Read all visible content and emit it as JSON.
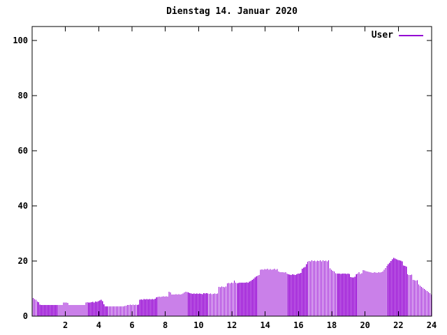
{
  "chart": {
    "title": "Dienstag 14. Januar 2020",
    "legend_label": "User"
  },
  "chart_data": {
    "type": "bar",
    "subtype": "impulses",
    "title": "Dienstag 14. Januar 2020",
    "xlabel": "",
    "ylabel": "",
    "x_unit": "hour of day",
    "sample_interval_minutes": 5,
    "x_ticks": [
      2,
      4,
      6,
      8,
      10,
      12,
      14,
      16,
      18,
      20,
      22,
      24
    ],
    "y_ticks": [
      0,
      20,
      40,
      60,
      80,
      100
    ],
    "xlim": [
      0,
      24
    ],
    "ylim": [
      0,
      105
    ],
    "grid": false,
    "legend_position": "top-right-inside",
    "bar_color": "#9400d3",
    "axis_color": "#000000",
    "background_color": "#ffffff",
    "series": [
      {
        "name": "User",
        "color": "#9400d3",
        "values": [
          6.6,
          6.2,
          5.9,
          5.3,
          5.1,
          4.2,
          4,
          4.1,
          4,
          4.1,
          4,
          4.1,
          4,
          4.1,
          4,
          4.1,
          4,
          4.1,
          4,
          4.1,
          4,
          4.1,
          4.9,
          5,
          4.9,
          4.8,
          4.1,
          4,
          4.1,
          4,
          4.1,
          4,
          4.1,
          4,
          4.1,
          4,
          4.1,
          4,
          4.9,
          5.1,
          5,
          4.9,
          5.1,
          5.2,
          5,
          5.3,
          5.2,
          5.5,
          5.7,
          5.9,
          5.4,
          4.3,
          3.6,
          3.5,
          3.6,
          3.5,
          3.6,
          3.5,
          3.6,
          3.5,
          3.5,
          3.6,
          3.5,
          3.6,
          3.5,
          3.6,
          3.7,
          3.8,
          4,
          4.1,
          4.2,
          4.1,
          4.2,
          4.1,
          4.2,
          4.1,
          4.2,
          6,
          6.1,
          6,
          6.2,
          6.1,
          6.2,
          6.1,
          6.2,
          6.1,
          6.2,
          6.1,
          6.3,
          6.9,
          7,
          7.1,
          7,
          7.1,
          7.2,
          7.1,
          7.2,
          7.1,
          8.9,
          8.6,
          7.9,
          7.8,
          7.9,
          8,
          7.9,
          8,
          7.9,
          8,
          8.2,
          8.6,
          8.8,
          8.7,
          8.6,
          8.4,
          8.2,
          8.1,
          8.2,
          8.1,
          8.2,
          8.1,
          8.2,
          8.1,
          8,
          8.3,
          8.2,
          8.4,
          8.2,
          8.1,
          8.2,
          8,
          8.1,
          8.2,
          8.1,
          8.2,
          10.6,
          10.5,
          10.7,
          10.6,
          10.5,
          10.7,
          11.9,
          12,
          11.9,
          12.1,
          12,
          12.9,
          12.1,
          11.9,
          12,
          12.1,
          12.2,
          12.1,
          12.2,
          12.1,
          12.3,
          12.2,
          12.5,
          12.8,
          13.2,
          13.6,
          14,
          14.4,
          14.7,
          15,
          16.8,
          17,
          16.9,
          17.1,
          17,
          17.2,
          16.9,
          17.1,
          16.8,
          17,
          17.2,
          16.9,
          17.1,
          16.2,
          16,
          15.9,
          16,
          15.8,
          15.9,
          15.5,
          15.2,
          15.1,
          15,
          15.2,
          15.1,
          15,
          15.2,
          15.4,
          15.5,
          15.7,
          17.2,
          17.6,
          17.8,
          18.8,
          19.8,
          20,
          19.9,
          20.2,
          20,
          20.1,
          19.9,
          20.1,
          20,
          20.2,
          19.9,
          20.3,
          20,
          20.1,
          19.9,
          20.2,
          17.4,
          16.8,
          16.5,
          16.2,
          15.6,
          15.5,
          15.4,
          15.5,
          15.3,
          15.5,
          15.4,
          15.5,
          15.3,
          15.4,
          15.3,
          14.2,
          14,
          14.1,
          14.3,
          15.2,
          15.5,
          15.9,
          15.3,
          15.6,
          16.7,
          16.6,
          16.3,
          16.2,
          16.1,
          16,
          15.8,
          15.7,
          15.9,
          15.8,
          15.7,
          15.9,
          15.8,
          16,
          16.2,
          16.8,
          17.5,
          18.2,
          18.8,
          19.4,
          20,
          20.6,
          21.2,
          20.9,
          20.6,
          20.4,
          20.3,
          20.1,
          19.9,
          18.4,
          18.2,
          18,
          15.2,
          15,
          14.9,
          15.1,
          13.2,
          13,
          12.9,
          13.1,
          11.5,
          11,
          10.6,
          10.2,
          9.9,
          9.5,
          9.1,
          8.7,
          8.3,
          7.8
        ]
      }
    ]
  }
}
